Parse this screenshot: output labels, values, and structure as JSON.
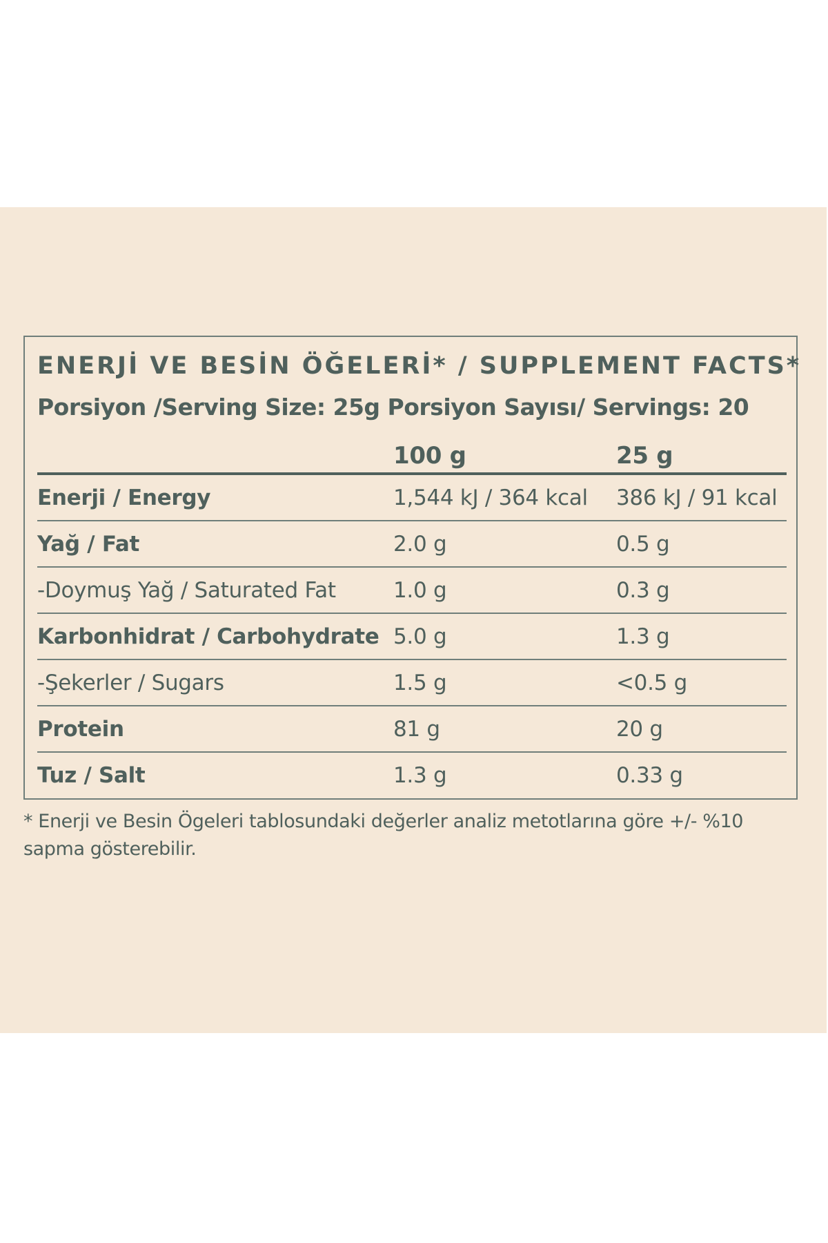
{
  "title": "ENERJİ VE BESİN ÖĞELERİ* / SUPPLEMENT FACTS*",
  "serving": "Porsiyon /Serving Size: 25g Porsiyon Sayısı/ Servings: 20",
  "table": {
    "header": [
      "100 g",
      "25 g"
    ],
    "rows": [
      [
        "Enerji / Energy",
        "1,544 kJ / 364 kcal",
        "386 kJ / 91 kcal"
      ],
      [
        "Yağ / Fat",
        "2.0 g",
        "0.5 g"
      ],
      [
        "-Doymuş Yağ / Saturated Fat",
        "1.0 g",
        "0.3 g"
      ],
      [
        "Karbonhidrat / Carbohydrate",
        "5.0 g",
        "1.3 g"
      ],
      [
        "-Şekerler / Sugars",
        "1.5 g",
        "<0.5 g"
      ],
      [
        "Protein",
        "81 g",
        "20 g"
      ],
      [
        "Tuz / Salt",
        "1.3 g",
        "0.33 g"
      ]
    ]
  },
  "footnote": "* Enerji ve Besin Ögeleri tablosundaki değerler analiz metotlarına göre +/- %10 sapma gösterebilir."
}
